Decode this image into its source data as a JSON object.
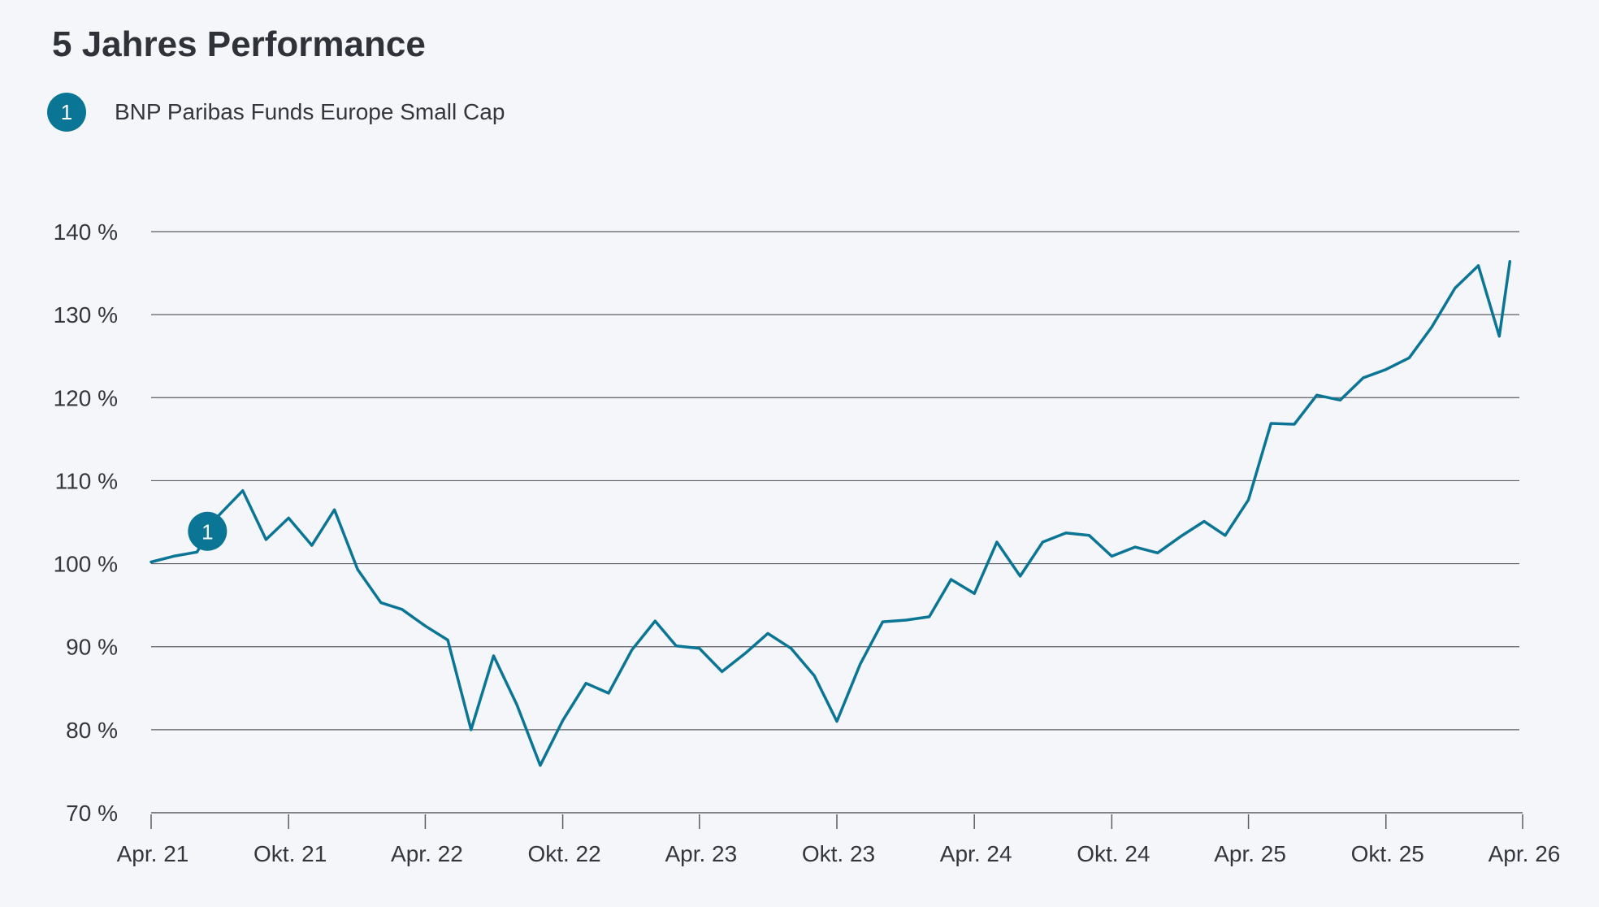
{
  "chart_data": {
    "type": "line",
    "title": "5 Jahres Performance",
    "xlabel": "",
    "ylabel": "",
    "ylim": [
      70,
      140
    ],
    "yticks": [
      70,
      80,
      90,
      100,
      110,
      120,
      130,
      140
    ],
    "ytick_labels": [
      "70 %",
      "80 %",
      "90 %",
      "100 %",
      "110 %",
      "120 %",
      "130 %",
      "140 %"
    ],
    "xlim": [
      "2021-04-01",
      "2026-04-01"
    ],
    "xticks": [
      "2021-04-01",
      "2021-10-01",
      "2022-04-01",
      "2022-10-01",
      "2023-04-01",
      "2023-10-01",
      "2024-04-01",
      "2024-10-01",
      "2025-04-01",
      "2025-10-01",
      "2026-04-01"
    ],
    "xtick_labels": [
      "Apr. 21",
      "Okt. 21",
      "Apr. 22",
      "Okt. 22",
      "Apr.  23",
      "Okt. 23",
      "Apr.  24",
      "Okt. 24",
      "Apr. 25",
      "Okt. 25",
      "Apr.  26"
    ],
    "grid": true,
    "legend": "top-left",
    "line_color": "#0a7594",
    "series": [
      {
        "name": "BNP Paribas Funds Europe Small Cap",
        "marker_label": "1",
        "x": [
          "2021-04-01",
          "2021-05-01",
          "2021-06-01",
          "2021-07-01",
          "2021-08-01",
          "2021-09-01",
          "2021-10-01",
          "2021-11-01",
          "2021-12-01",
          "2022-01-01",
          "2022-02-01",
          "2022-03-01",
          "2022-04-01",
          "2022-05-01",
          "2022-06-01",
          "2022-07-01",
          "2022-08-01",
          "2022-09-01",
          "2022-10-01",
          "2022-11-01",
          "2022-12-01",
          "2023-01-01",
          "2023-02-01",
          "2023-03-01",
          "2023-04-01",
          "2023-05-01",
          "2023-06-01",
          "2023-07-01",
          "2023-08-01",
          "2023-09-01",
          "2023-10-01",
          "2023-11-01",
          "2023-12-01",
          "2024-01-01",
          "2024-02-01",
          "2024-03-01",
          "2024-04-01",
          "2024-05-01",
          "2024-06-01",
          "2024-07-01",
          "2024-08-01",
          "2024-09-01",
          "2024-10-01",
          "2024-11-01",
          "2024-12-01",
          "2025-01-01",
          "2025-02-01",
          "2025-03-01",
          "2025-04-01",
          "2025-05-01",
          "2025-06-01",
          "2025-07-01",
          "2025-08-01",
          "2025-09-01",
          "2025-10-01",
          "2025-11-01",
          "2025-12-01",
          "2026-01-01",
          "2026-02-01",
          "2026-03-01",
          "2026-03-15"
        ],
        "values": [
          100.2,
          100.9,
          101.4,
          105.9,
          108.8,
          102.9,
          105.5,
          102.2,
          106.5,
          99.3,
          95.3,
          94.5,
          92.5,
          90.8,
          80.0,
          88.9,
          83.0,
          75.7,
          81.1,
          85.6,
          84.4,
          89.6,
          93.1,
          90.1,
          89.8,
          87.0,
          89.2,
          91.6,
          89.8,
          86.5,
          81.0,
          87.9,
          93.0,
          93.2,
          93.6,
          98.1,
          96.4,
          102.6,
          98.5,
          102.6,
          103.7,
          103.4,
          100.9,
          102.0,
          101.3,
          103.3,
          105.1,
          103.4,
          107.7,
          116.9,
          116.8,
          120.3,
          119.7,
          122.4,
          123.4,
          124.8,
          128.5,
          133.2,
          135.9,
          127.4,
          136.4
        ]
      }
    ]
  }
}
